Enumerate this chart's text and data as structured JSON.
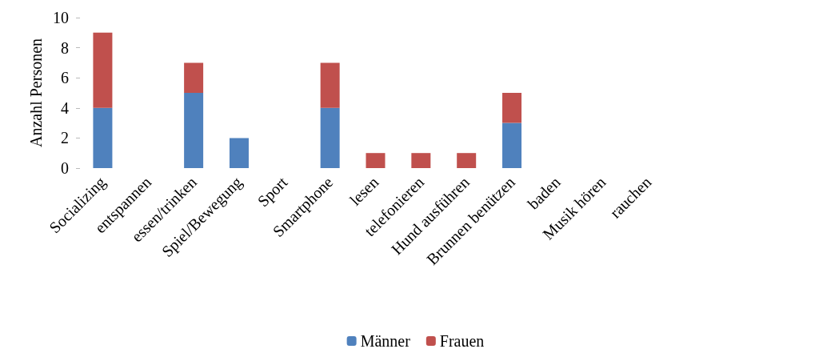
{
  "chart_data": {
    "type": "bar",
    "stacked": true,
    "ylabel": "Anzahl Personen",
    "categories": [
      "Socializing",
      "entspannen",
      "essen/trinken",
      "Spiel/Bewegung",
      "Sport",
      "Smartphone",
      "lesen",
      "telefonieren",
      "Hund ausführen",
      "Brunnen benützen",
      "baden",
      "Musik hören",
      "rauchen"
    ],
    "series": [
      {
        "name": "Männer",
        "color": "#4f81bd",
        "values": [
          4,
          0,
          5,
          2,
          0,
          4,
          0,
          0,
          0,
          3,
          0,
          0,
          0
        ]
      },
      {
        "name": "Frauen",
        "color": "#c0504d",
        "values": [
          5,
          0,
          2,
          0,
          0,
          3,
          1,
          1,
          1,
          2,
          0,
          0,
          0
        ]
      }
    ],
    "ylim": [
      0,
      10
    ],
    "yticks": [
      0,
      2,
      4,
      6,
      8,
      10
    ],
    "grid": false,
    "legend": "bottom"
  }
}
